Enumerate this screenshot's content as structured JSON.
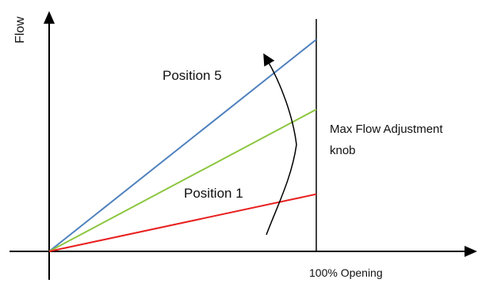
{
  "chart_data": {
    "type": "line",
    "ylabel": "Flow",
    "xlabel": "100% Opening",
    "xlim": [
      0,
      100
    ],
    "ylim": [
      0,
      100
    ],
    "grid": false,
    "legend": "none",
    "series": [
      {
        "color": "#4f81bd",
        "x": [
          0,
          100
        ],
        "y": [
          0,
          100
        ]
      },
      {
        "color": "#8cc63f",
        "x": [
          0,
          100
        ],
        "y": [
          0,
          67
        ]
      },
      {
        "color": "#e8201f",
        "x": [
          0,
          100
        ],
        "y": [
          0,
          27
        ]
      }
    ],
    "annotations": [
      {
        "text": "Position 5",
        "near_series": 0
      },
      {
        "text": "Position 1",
        "near_series": 2
      },
      {
        "text": "Max Flow Adjustment",
        "line2": "knob"
      }
    ]
  }
}
